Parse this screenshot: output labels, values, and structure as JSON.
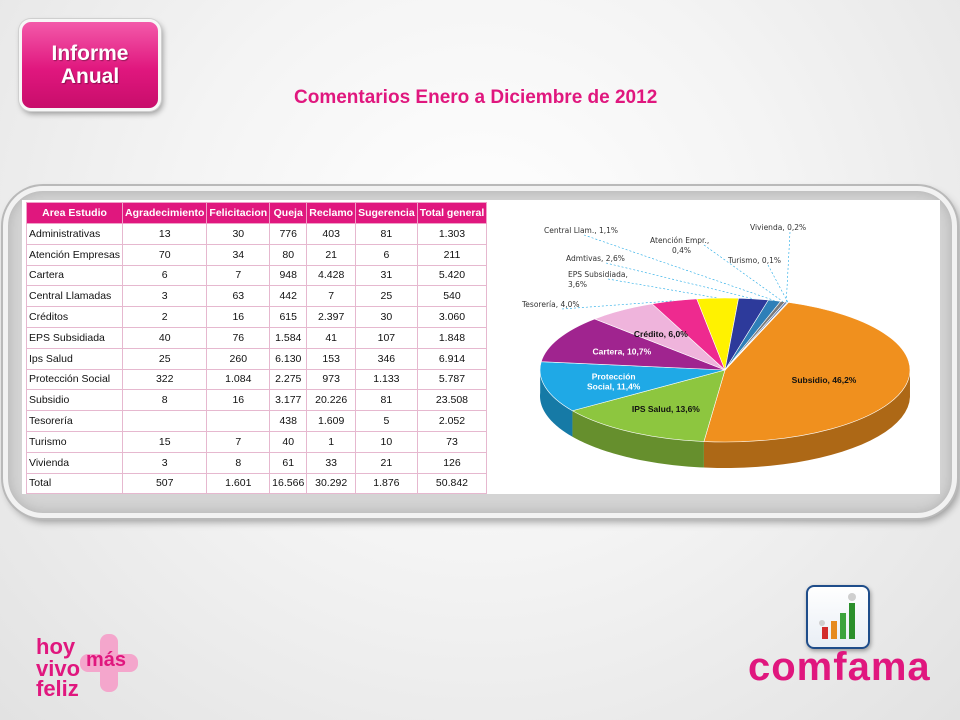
{
  "badge": {
    "line1": "Informe",
    "line2": "Anual"
  },
  "page_title": "Comentarios Enero a Diciembre de 2012",
  "table": {
    "headers": [
      "Area Estudio",
      "Agradecimiento",
      "Felicitacion",
      "Queja",
      "Reclamo",
      "Sugerencia",
      "Total general"
    ],
    "rows": [
      [
        "Administrativas",
        "13",
        "30",
        "776",
        "403",
        "81",
        "1.303"
      ],
      [
        "Atención Empresas",
        "70",
        "34",
        "80",
        "21",
        "6",
        "211"
      ],
      [
        "Cartera",
        "6",
        "7",
        "948",
        "4.428",
        "31",
        "5.420"
      ],
      [
        "Central Llamadas",
        "3",
        "63",
        "442",
        "7",
        "25",
        "540"
      ],
      [
        "Créditos",
        "2",
        "16",
        "615",
        "2.397",
        "30",
        "3.060"
      ],
      [
        "EPS Subsidiada",
        "40",
        "76",
        "1.584",
        "41",
        "107",
        "1.848"
      ],
      [
        "Ips Salud",
        "25",
        "260",
        "6.130",
        "153",
        "346",
        "6.914"
      ],
      [
        "Protección Social",
        "322",
        "1.084",
        "2.275",
        "973",
        "1.133",
        "5.787"
      ],
      [
        "Subsidio",
        "8",
        "16",
        "3.177",
        "20.226",
        "81",
        "23.508"
      ],
      [
        "Tesorería",
        "",
        "",
        "438",
        "1.609",
        "5",
        "2.052"
      ],
      [
        "Turismo",
        "15",
        "7",
        "40",
        "1",
        "10",
        "73"
      ],
      [
        "Vivienda",
        "3",
        "8",
        "61",
        "33",
        "21",
        "126"
      ],
      [
        "Total",
        "507",
        "1.601",
        "16.566",
        "30.292",
        "1.876",
        "50.842"
      ]
    ]
  },
  "chart_data": {
    "type": "pie",
    "slices": [
      {
        "label": "Subsidio, 46,2%",
        "value": 46.2,
        "color": "#f0901e",
        "label_placement": "inside"
      },
      {
        "label": "IPS Salud, 13,6%",
        "value": 13.6,
        "color": "#8dc63f",
        "label_placement": "inside"
      },
      {
        "label": "Protección Social, 11,4%",
        "value": 11.4,
        "color": "#1fa9e6",
        "label_placement": "inside"
      },
      {
        "label": "Cartera, 10,7%",
        "value": 10.7,
        "color": "#a0248f",
        "label_placement": "inside"
      },
      {
        "label": "Crédito, 6,0%",
        "value": 6.0,
        "color": "#efb4dc",
        "label_placement": "inside"
      },
      {
        "label": "Tesorería, 4,0%",
        "value": 4.0,
        "color": "#ee2a8f",
        "label_placement": "outside"
      },
      {
        "label": "EPS Subsidiada, 3,6%",
        "value": 3.6,
        "color": "#fff200",
        "label_placement": "outside"
      },
      {
        "label": "Admtivas, 2,6%",
        "value": 2.6,
        "color": "#2d3a9b",
        "label_placement": "outside"
      },
      {
        "label": "Central Llam., 1,1%",
        "value": 1.1,
        "color": "#2e7fb8",
        "label_placement": "outside"
      },
      {
        "label": "Atención Empr., 0,4%",
        "value": 0.4,
        "color": "#7a7a7a",
        "label_placement": "outside"
      },
      {
        "label": "Vivienda, 0,2%",
        "value": 0.2,
        "color": "#4f6fa8",
        "label_placement": "outside"
      },
      {
        "label": "Turismo, 0,1%",
        "value": 0.1,
        "color": "#c9c9c9",
        "label_placement": "outside"
      }
    ],
    "legend": "none",
    "style": "3d-tilted"
  },
  "footer": {
    "left_logo_lines": [
      "hoy",
      "vivo",
      "más",
      "feliz"
    ],
    "right_logo": "comfama",
    "icon": "growth-chart-icon"
  },
  "colors": {
    "accent": "#e0177e",
    "table_header": "#e0177e"
  }
}
